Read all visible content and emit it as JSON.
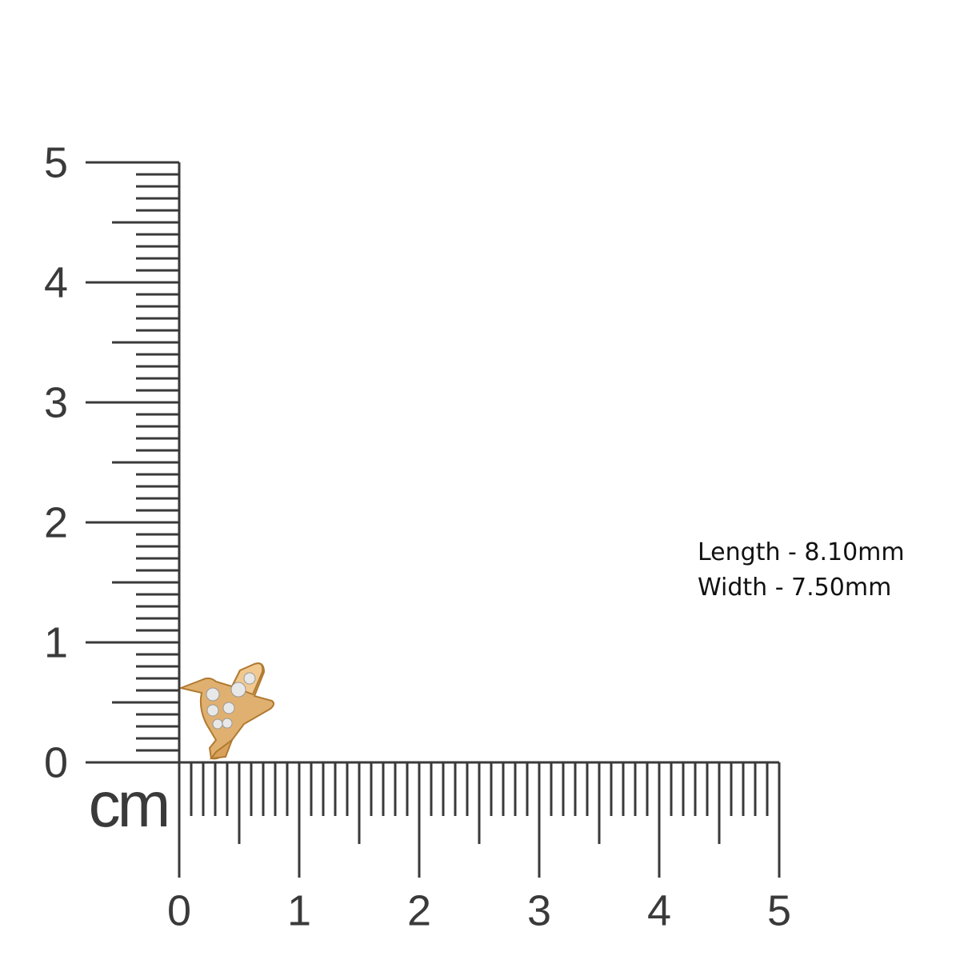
{
  "vertical_ruler": {
    "labels": [
      0,
      1,
      2,
      3,
      4,
      5
    ]
  },
  "horizontal_ruler": {
    "labels": [
      0,
      1,
      2,
      3,
      4,
      5
    ]
  },
  "unit": "cm",
  "specs": [
    "Length - 8.10mm",
    "Width - 7.50mm"
  ]
}
